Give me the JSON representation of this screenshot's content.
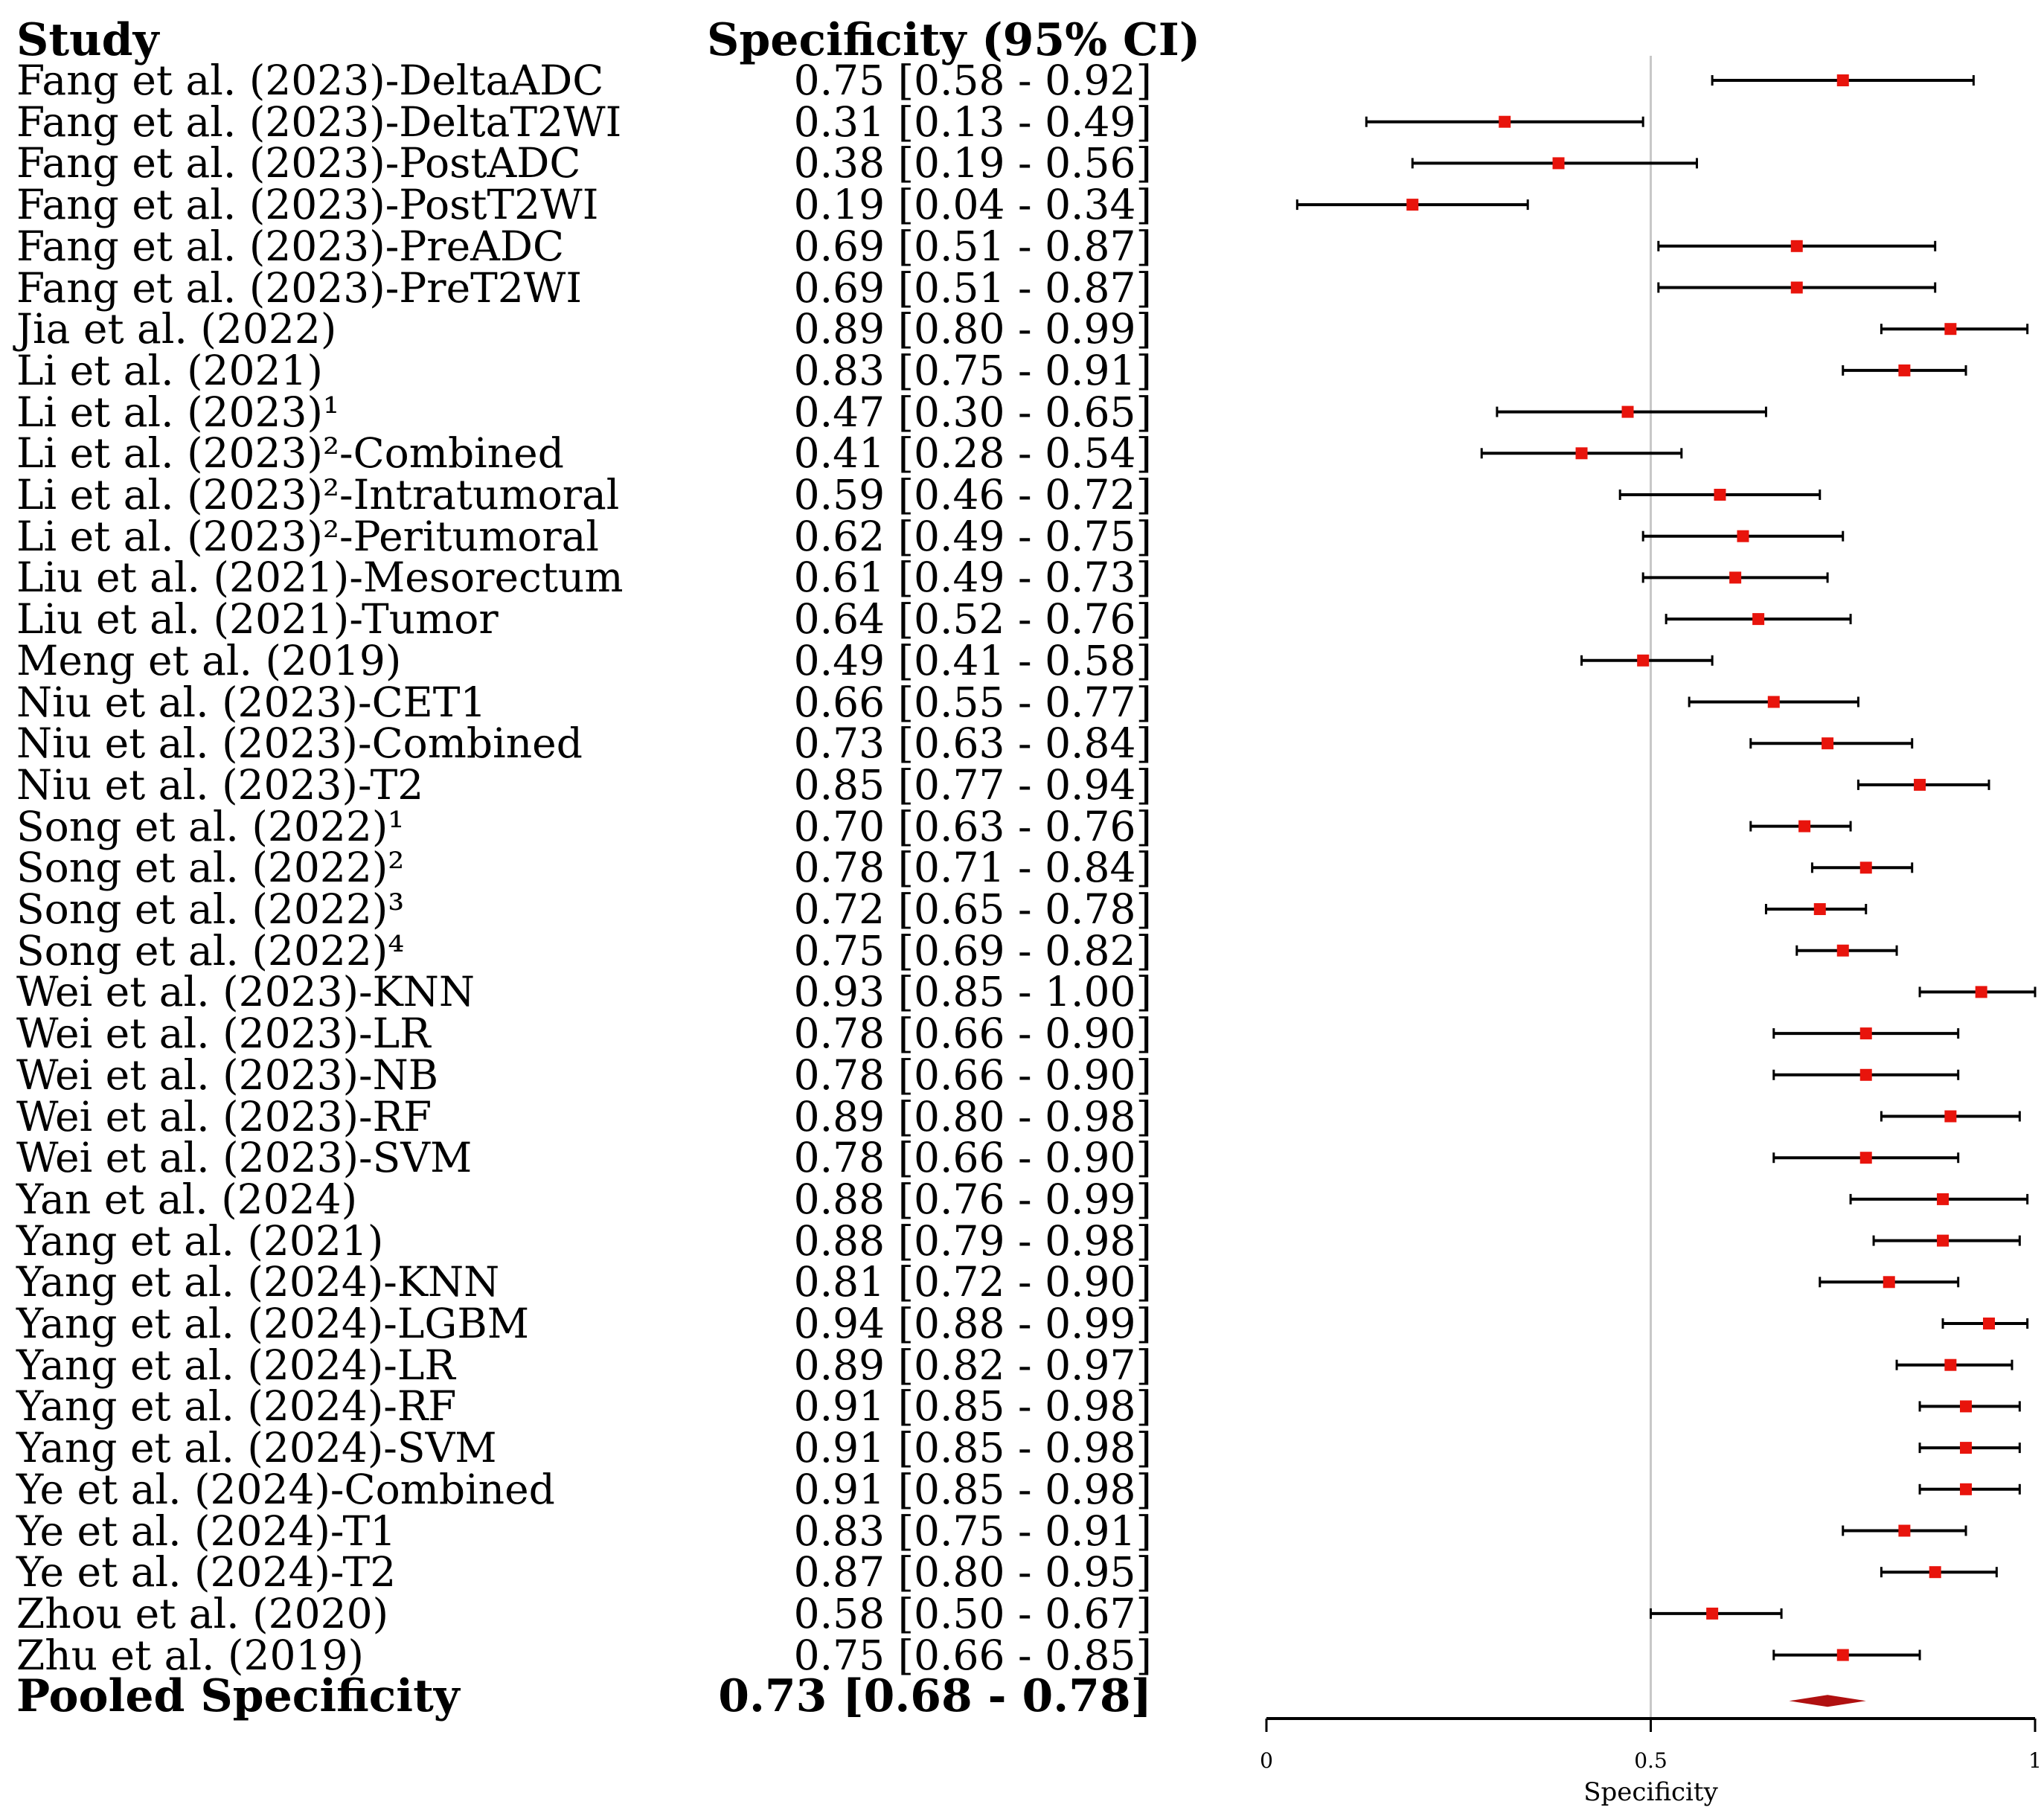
{
  "headers": {
    "study": "Study",
    "spec": "Specificity (95% CI)"
  },
  "pooled": {
    "label": "Pooled Specificity",
    "text": "0.73 [0.68 - 0.78]",
    "value": 0.73,
    "lo": 0.68,
    "hi": 0.78
  },
  "chart_data": {
    "type": "forest",
    "xlabel": "Specificity",
    "xlim": [
      0,
      1
    ],
    "xticks": [
      "0",
      "0.5",
      "1"
    ],
    "reference_line": 0.5,
    "marker_color": "#e8140c",
    "pooled_color": "#b01010",
    "studies": [
      {
        "study": "Fang et al. (2023)-DeltaADC",
        "est": 0.75,
        "lo": 0.58,
        "hi": 0.92,
        "text": "0.75 [0.58 - 0.92]"
      },
      {
        "study": "Fang et al. (2023)-DeltaT2WI",
        "est": 0.31,
        "lo": 0.13,
        "hi": 0.49,
        "text": "0.31 [0.13 - 0.49]"
      },
      {
        "study": "Fang et al. (2023)-PostADC",
        "est": 0.38,
        "lo": 0.19,
        "hi": 0.56,
        "text": "0.38 [0.19 - 0.56]"
      },
      {
        "study": "Fang et al. (2023)-PostT2WI",
        "est": 0.19,
        "lo": 0.04,
        "hi": 0.34,
        "text": "0.19 [0.04 - 0.34]"
      },
      {
        "study": "Fang et al. (2023)-PreADC",
        "est": 0.69,
        "lo": 0.51,
        "hi": 0.87,
        "text": "0.69 [0.51 - 0.87]"
      },
      {
        "study": "Fang et al. (2023)-PreT2WI",
        "est": 0.69,
        "lo": 0.51,
        "hi": 0.87,
        "text": "0.69 [0.51 - 0.87]"
      },
      {
        "study": "Jia et al. (2022)",
        "est": 0.89,
        "lo": 0.8,
        "hi": 0.99,
        "text": "0.89 [0.80 - 0.99]"
      },
      {
        "study": "Li et al. (2021)",
        "est": 0.83,
        "lo": 0.75,
        "hi": 0.91,
        "text": "0.83 [0.75 - 0.91]"
      },
      {
        "study": "Li et al. (2023)¹",
        "est": 0.47,
        "lo": 0.3,
        "hi": 0.65,
        "text": "0.47 [0.30 - 0.65]"
      },
      {
        "study": "Li et al. (2023)²-Combined",
        "est": 0.41,
        "lo": 0.28,
        "hi": 0.54,
        "text": "0.41 [0.28 - 0.54]"
      },
      {
        "study": "Li et al. (2023)²-Intratumoral",
        "est": 0.59,
        "lo": 0.46,
        "hi": 0.72,
        "text": "0.59 [0.46 - 0.72]"
      },
      {
        "study": "Li et al. (2023)²-Peritumoral",
        "est": 0.62,
        "lo": 0.49,
        "hi": 0.75,
        "text": "0.62 [0.49 - 0.75]"
      },
      {
        "study": "Liu et al. (2021)-Mesorectum",
        "est": 0.61,
        "lo": 0.49,
        "hi": 0.73,
        "text": "0.61 [0.49 - 0.73]"
      },
      {
        "study": "Liu et al. (2021)-Tumor",
        "est": 0.64,
        "lo": 0.52,
        "hi": 0.76,
        "text": "0.64 [0.52 - 0.76]"
      },
      {
        "study": "Meng et al. (2019)",
        "est": 0.49,
        "lo": 0.41,
        "hi": 0.58,
        "text": "0.49 [0.41 - 0.58]"
      },
      {
        "study": "Niu et al. (2023)-CET1",
        "est": 0.66,
        "lo": 0.55,
        "hi": 0.77,
        "text": "0.66 [0.55 - 0.77]"
      },
      {
        "study": "Niu et al. (2023)-Combined",
        "est": 0.73,
        "lo": 0.63,
        "hi": 0.84,
        "text": "0.73 [0.63 - 0.84]"
      },
      {
        "study": "Niu et al. (2023)-T2",
        "est": 0.85,
        "lo": 0.77,
        "hi": 0.94,
        "text": "0.85 [0.77 - 0.94]"
      },
      {
        "study": "Song et al. (2022)¹",
        "est": 0.7,
        "lo": 0.63,
        "hi": 0.76,
        "text": "0.70 [0.63 - 0.76]"
      },
      {
        "study": "Song et al. (2022)²",
        "est": 0.78,
        "lo": 0.71,
        "hi": 0.84,
        "text": "0.78 [0.71 - 0.84]"
      },
      {
        "study": "Song et al. (2022)³",
        "est": 0.72,
        "lo": 0.65,
        "hi": 0.78,
        "text": "0.72 [0.65 - 0.78]"
      },
      {
        "study": "Song et al. (2022)⁴",
        "est": 0.75,
        "lo": 0.69,
        "hi": 0.82,
        "text": "0.75 [0.69 - 0.82]"
      },
      {
        "study": "Wei et al. (2023)-KNN",
        "est": 0.93,
        "lo": 0.85,
        "hi": 1.0,
        "text": "0.93 [0.85 - 1.00]"
      },
      {
        "study": "Wei et al. (2023)-LR",
        "est": 0.78,
        "lo": 0.66,
        "hi": 0.9,
        "text": "0.78 [0.66 - 0.90]"
      },
      {
        "study": "Wei et al. (2023)-NB",
        "est": 0.78,
        "lo": 0.66,
        "hi": 0.9,
        "text": "0.78 [0.66 - 0.90]"
      },
      {
        "study": "Wei et al. (2023)-RF",
        "est": 0.89,
        "lo": 0.8,
        "hi": 0.98,
        "text": "0.89 [0.80 - 0.98]"
      },
      {
        "study": "Wei et al. (2023)-SVM",
        "est": 0.78,
        "lo": 0.66,
        "hi": 0.9,
        "text": "0.78 [0.66 - 0.90]"
      },
      {
        "study": "Yan et al. (2024)",
        "est": 0.88,
        "lo": 0.76,
        "hi": 0.99,
        "text": "0.88 [0.76 - 0.99]"
      },
      {
        "study": "Yang et al. (2021)",
        "est": 0.88,
        "lo": 0.79,
        "hi": 0.98,
        "text": "0.88 [0.79 - 0.98]"
      },
      {
        "study": "Yang et al. (2024)-KNN",
        "est": 0.81,
        "lo": 0.72,
        "hi": 0.9,
        "text": "0.81 [0.72 - 0.90]"
      },
      {
        "study": "Yang et al. (2024)-LGBM",
        "est": 0.94,
        "lo": 0.88,
        "hi": 0.99,
        "text": "0.94 [0.88 - 0.99]"
      },
      {
        "study": "Yang et al. (2024)-LR",
        "est": 0.89,
        "lo": 0.82,
        "hi": 0.97,
        "text": "0.89 [0.82 - 0.97]"
      },
      {
        "study": "Yang et al. (2024)-RF",
        "est": 0.91,
        "lo": 0.85,
        "hi": 0.98,
        "text": "0.91 [0.85 - 0.98]"
      },
      {
        "study": "Yang et al. (2024)-SVM",
        "est": 0.91,
        "lo": 0.85,
        "hi": 0.98,
        "text": "0.91 [0.85 - 0.98]"
      },
      {
        "study": "Ye et al. (2024)-Combined",
        "est": 0.91,
        "lo": 0.85,
        "hi": 0.98,
        "text": "0.91 [0.85 - 0.98]"
      },
      {
        "study": "Ye et al. (2024)-T1",
        "est": 0.83,
        "lo": 0.75,
        "hi": 0.91,
        "text": "0.83 [0.75 - 0.91]"
      },
      {
        "study": "Ye et al. (2024)-T2",
        "est": 0.87,
        "lo": 0.8,
        "hi": 0.95,
        "text": "0.87 [0.80 - 0.95]"
      },
      {
        "study": "Zhou et al. (2020)",
        "est": 0.58,
        "lo": 0.5,
        "hi": 0.67,
        "text": "0.58 [0.50 - 0.67]"
      },
      {
        "study": "Zhu et al. (2019)",
        "est": 0.75,
        "lo": 0.66,
        "hi": 0.85,
        "text": "0.75 [0.66 - 0.85]"
      }
    ]
  }
}
